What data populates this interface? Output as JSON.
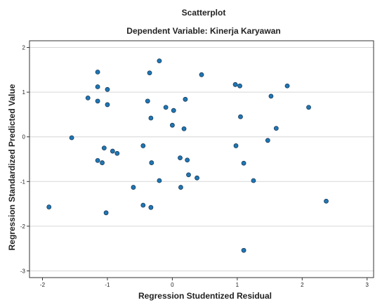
{
  "chart_data": {
    "type": "scatter",
    "title": "Scatterplot",
    "subtitle": "Dependent Variable: Kinerja Karyawan",
    "xlabel": "Regression Studentized Residual",
    "ylabel": "Regression Standardized Predicted Value",
    "xlim": [
      -2.2,
      3.1
    ],
    "ylim": [
      -3.15,
      2.15
    ],
    "xticks": [
      -2,
      -1,
      0,
      1,
      2,
      3
    ],
    "yticks": [
      -3,
      -2,
      -1,
      0,
      1,
      2
    ],
    "grid": "horizontal",
    "marker_color": "#1f77b4",
    "marker_edge": "#1a3a5a",
    "points": [
      {
        "x": -1.9,
        "y": -1.57
      },
      {
        "x": -1.55,
        "y": -0.02
      },
      {
        "x": -1.3,
        "y": 0.87
      },
      {
        "x": -1.15,
        "y": 1.45
      },
      {
        "x": -1.15,
        "y": 1.12
      },
      {
        "x": -1.15,
        "y": 0.8
      },
      {
        "x": -1.15,
        "y": -0.53
      },
      {
        "x": -1.08,
        "y": -0.58
      },
      {
        "x": -1.05,
        "y": -0.25
      },
      {
        "x": -1.0,
        "y": 1.06
      },
      {
        "x": -1.0,
        "y": 0.72
      },
      {
        "x": -1.02,
        "y": -1.7
      },
      {
        "x": -0.92,
        "y": -0.32
      },
      {
        "x": -0.85,
        "y": -0.37
      },
      {
        "x": -0.6,
        "y": -1.13
      },
      {
        "x": -0.45,
        "y": -1.53
      },
      {
        "x": -0.45,
        "y": -0.2
      },
      {
        "x": -0.38,
        "y": 0.8
      },
      {
        "x": -0.35,
        "y": 1.43
      },
      {
        "x": -0.33,
        "y": 0.42
      },
      {
        "x": -0.32,
        "y": -0.58
      },
      {
        "x": -0.33,
        "y": -1.58
      },
      {
        "x": -0.2,
        "y": 1.7
      },
      {
        "x": -0.2,
        "y": -0.98
      },
      {
        "x": -0.1,
        "y": 0.66
      },
      {
        "x": 0.02,
        "y": 0.59
      },
      {
        "x": 0.0,
        "y": 0.26
      },
      {
        "x": 0.12,
        "y": -0.47
      },
      {
        "x": 0.13,
        "y": -1.13
      },
      {
        "x": 0.18,
        "y": 0.18
      },
      {
        "x": 0.2,
        "y": 0.84
      },
      {
        "x": 0.23,
        "y": -0.52
      },
      {
        "x": 0.25,
        "y": -0.85
      },
      {
        "x": 0.38,
        "y": -0.92
      },
      {
        "x": 0.45,
        "y": 1.39
      },
      {
        "x": 0.97,
        "y": 1.17
      },
      {
        "x": 0.98,
        "y": -0.2
      },
      {
        "x": 1.04,
        "y": 1.14
      },
      {
        "x": 1.05,
        "y": 0.45
      },
      {
        "x": 1.1,
        "y": -0.59
      },
      {
        "x": 1.1,
        "y": -2.54
      },
      {
        "x": 1.25,
        "y": -0.98
      },
      {
        "x": 1.47,
        "y": -0.08
      },
      {
        "x": 1.52,
        "y": 0.91
      },
      {
        "x": 1.6,
        "y": 0.19
      },
      {
        "x": 1.77,
        "y": 1.14
      },
      {
        "x": 2.1,
        "y": 0.66
      },
      {
        "x": 2.37,
        "y": -1.44
      }
    ]
  }
}
